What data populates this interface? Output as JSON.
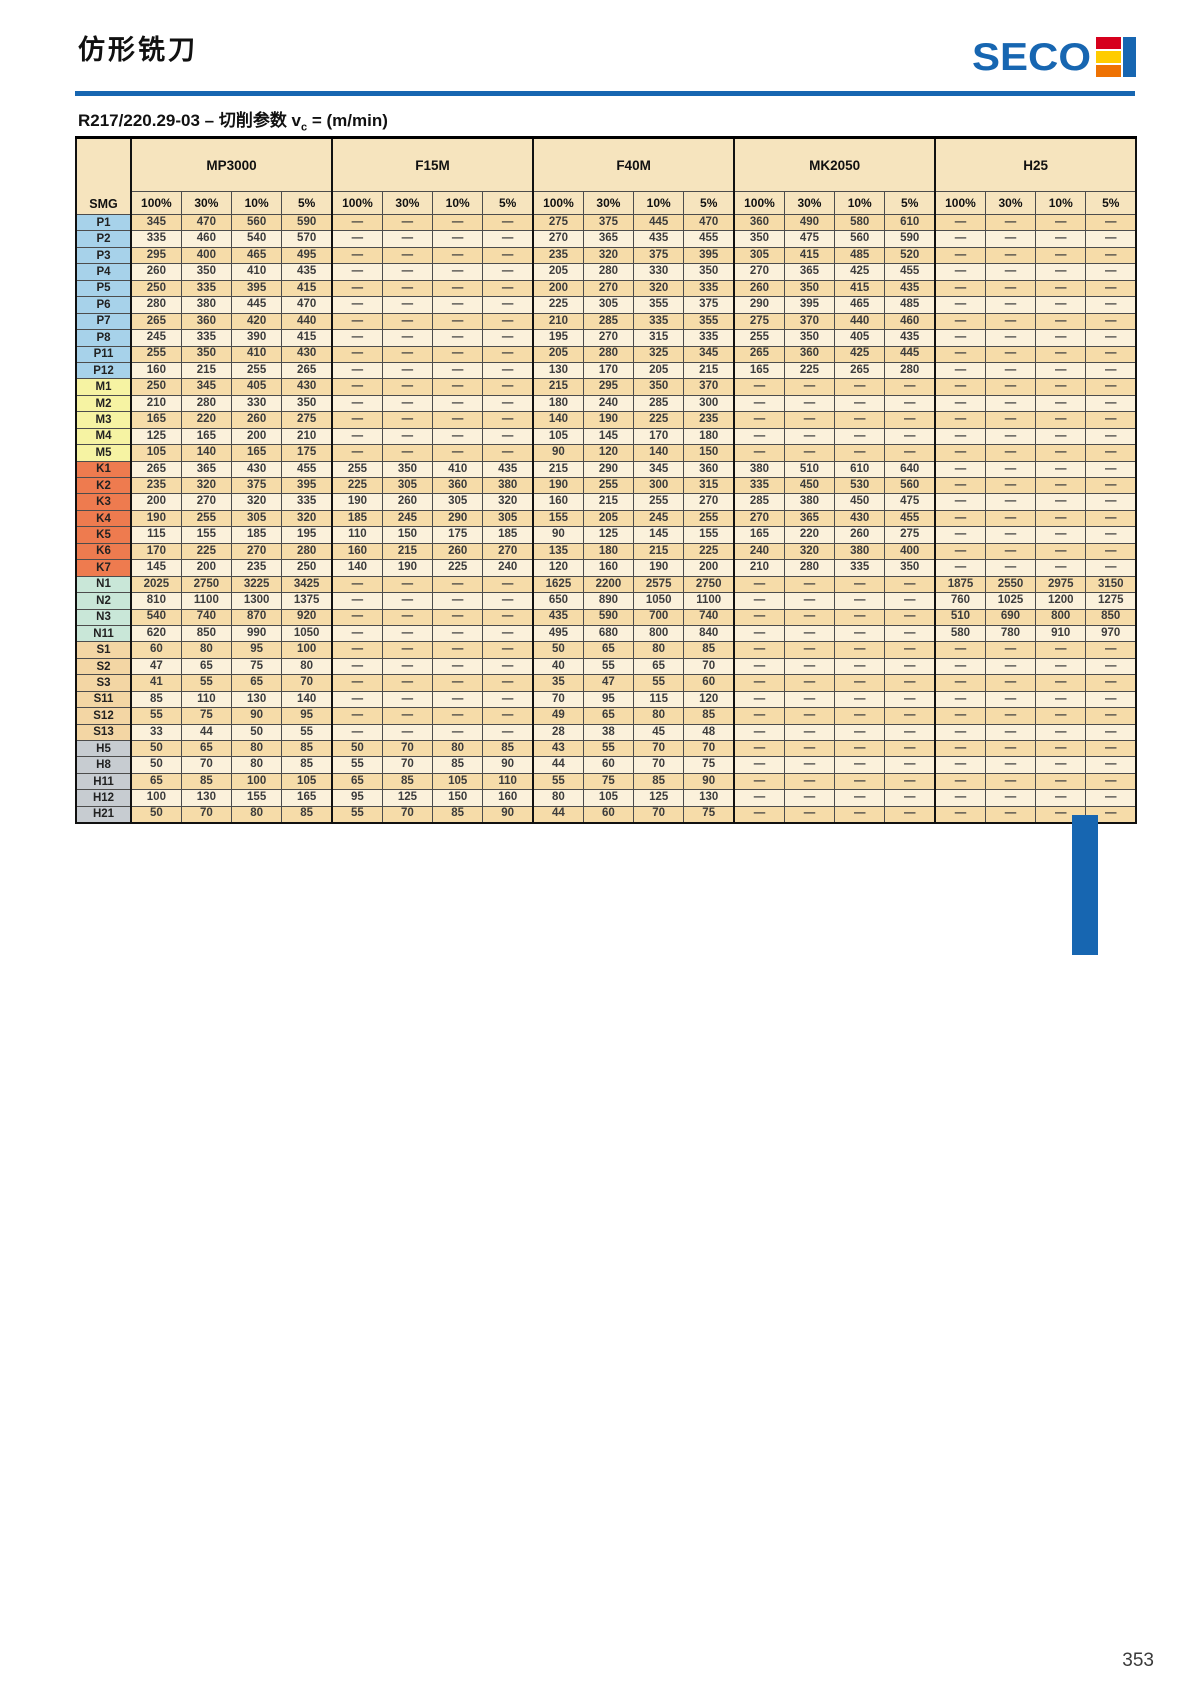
{
  "page": {
    "title": "仿形铣刀",
    "brand": "SECO",
    "subtitle_prefix": "R217/220.29-03 – 切削参数 v",
    "subtitle_sub": "c",
    "subtitle_suffix": " = (m/min)",
    "page_number": "353"
  },
  "colors": {
    "accent": "#1766B1",
    "header_bg": "#F6E4BE",
    "row_dark": "#F6DCA9",
    "row_light": "#FBF1DB",
    "logo_warm": [
      "#D6001C",
      "#FFCC00",
      "#EE7203"
    ],
    "row_groups": {
      "P": "#A7D2EA",
      "M": "#F6F3A3",
      "K": "#EE7B4F",
      "N": "#C9E7D8",
      "S": "#F3D6A4",
      "H": "#C7CCD1"
    }
  },
  "table": {
    "smg_label": "SMG",
    "groups": [
      "MP3000",
      "F15M",
      "F40M",
      "MK2050",
      "H25"
    ],
    "percent_headers": [
      "100%",
      "30%",
      "10%",
      "5%"
    ],
    "rows": [
      {
        "label": "P1",
        "group": "P",
        "values": [
          "345",
          "470",
          "560",
          "590",
          "—",
          "—",
          "—",
          "—",
          "275",
          "375",
          "445",
          "470",
          "360",
          "490",
          "580",
          "610",
          "—",
          "—",
          "—",
          "—"
        ]
      },
      {
        "label": "P2",
        "group": "P",
        "values": [
          "335",
          "460",
          "540",
          "570",
          "—",
          "—",
          "—",
          "—",
          "270",
          "365",
          "435",
          "455",
          "350",
          "475",
          "560",
          "590",
          "—",
          "—",
          "—",
          "—"
        ]
      },
      {
        "label": "P3",
        "group": "P",
        "values": [
          "295",
          "400",
          "465",
          "495",
          "—",
          "—",
          "—",
          "—",
          "235",
          "320",
          "375",
          "395",
          "305",
          "415",
          "485",
          "520",
          "—",
          "—",
          "—",
          "—"
        ]
      },
      {
        "label": "P4",
        "group": "P",
        "values": [
          "260",
          "350",
          "410",
          "435",
          "—",
          "—",
          "—",
          "—",
          "205",
          "280",
          "330",
          "350",
          "270",
          "365",
          "425",
          "455",
          "—",
          "—",
          "—",
          "—"
        ]
      },
      {
        "label": "P5",
        "group": "P",
        "values": [
          "250",
          "335",
          "395",
          "415",
          "—",
          "—",
          "—",
          "—",
          "200",
          "270",
          "320",
          "335",
          "260",
          "350",
          "415",
          "435",
          "—",
          "—",
          "—",
          "—"
        ]
      },
      {
        "label": "P6",
        "group": "P",
        "values": [
          "280",
          "380",
          "445",
          "470",
          "—",
          "—",
          "—",
          "—",
          "225",
          "305",
          "355",
          "375",
          "290",
          "395",
          "465",
          "485",
          "—",
          "—",
          "—",
          "—"
        ]
      },
      {
        "label": "P7",
        "group": "P",
        "values": [
          "265",
          "360",
          "420",
          "440",
          "—",
          "—",
          "—",
          "—",
          "210",
          "285",
          "335",
          "355",
          "275",
          "370",
          "440",
          "460",
          "—",
          "—",
          "—",
          "—"
        ]
      },
      {
        "label": "P8",
        "group": "P",
        "values": [
          "245",
          "335",
          "390",
          "415",
          "—",
          "—",
          "—",
          "—",
          "195",
          "270",
          "315",
          "335",
          "255",
          "350",
          "405",
          "435",
          "—",
          "—",
          "—",
          "—"
        ]
      },
      {
        "label": "P11",
        "group": "P",
        "values": [
          "255",
          "350",
          "410",
          "430",
          "—",
          "—",
          "—",
          "—",
          "205",
          "280",
          "325",
          "345",
          "265",
          "360",
          "425",
          "445",
          "—",
          "—",
          "—",
          "—"
        ]
      },
      {
        "label": "P12",
        "group": "P",
        "values": [
          "160",
          "215",
          "255",
          "265",
          "—",
          "—",
          "—",
          "—",
          "130",
          "170",
          "205",
          "215",
          "165",
          "225",
          "265",
          "280",
          "—",
          "—",
          "—",
          "—"
        ]
      },
      {
        "label": "M1",
        "group": "M",
        "values": [
          "250",
          "345",
          "405",
          "430",
          "—",
          "—",
          "—",
          "—",
          "215",
          "295",
          "350",
          "370",
          "—",
          "—",
          "—",
          "—",
          "—",
          "—",
          "—",
          "—"
        ]
      },
      {
        "label": "M2",
        "group": "M",
        "values": [
          "210",
          "280",
          "330",
          "350",
          "—",
          "—",
          "—",
          "—",
          "180",
          "240",
          "285",
          "300",
          "—",
          "—",
          "—",
          "—",
          "—",
          "—",
          "—",
          "—"
        ]
      },
      {
        "label": "M3",
        "group": "M",
        "values": [
          "165",
          "220",
          "260",
          "275",
          "—",
          "—",
          "—",
          "—",
          "140",
          "190",
          "225",
          "235",
          "—",
          "—",
          "—",
          "—",
          "—",
          "—",
          "—",
          "—"
        ]
      },
      {
        "label": "M4",
        "group": "M",
        "values": [
          "125",
          "165",
          "200",
          "210",
          "—",
          "—",
          "—",
          "—",
          "105",
          "145",
          "170",
          "180",
          "—",
          "—",
          "—",
          "—",
          "—",
          "—",
          "—",
          "—"
        ]
      },
      {
        "label": "M5",
        "group": "M",
        "values": [
          "105",
          "140",
          "165",
          "175",
          "—",
          "—",
          "—",
          "—",
          "90",
          "120",
          "140",
          "150",
          "—",
          "—",
          "—",
          "—",
          "—",
          "—",
          "—",
          "—"
        ]
      },
      {
        "label": "K1",
        "group": "K",
        "values": [
          "265",
          "365",
          "430",
          "455",
          "255",
          "350",
          "410",
          "435",
          "215",
          "290",
          "345",
          "360",
          "380",
          "510",
          "610",
          "640",
          "—",
          "—",
          "—",
          "—"
        ]
      },
      {
        "label": "K2",
        "group": "K",
        "values": [
          "235",
          "320",
          "375",
          "395",
          "225",
          "305",
          "360",
          "380",
          "190",
          "255",
          "300",
          "315",
          "335",
          "450",
          "530",
          "560",
          "—",
          "—",
          "—",
          "—"
        ]
      },
      {
        "label": "K3",
        "group": "K",
        "values": [
          "200",
          "270",
          "320",
          "335",
          "190",
          "260",
          "305",
          "320",
          "160",
          "215",
          "255",
          "270",
          "285",
          "380",
          "450",
          "475",
          "—",
          "—",
          "—",
          "—"
        ]
      },
      {
        "label": "K4",
        "group": "K",
        "values": [
          "190",
          "255",
          "305",
          "320",
          "185",
          "245",
          "290",
          "305",
          "155",
          "205",
          "245",
          "255",
          "270",
          "365",
          "430",
          "455",
          "—",
          "—",
          "—",
          "—"
        ]
      },
      {
        "label": "K5",
        "group": "K",
        "values": [
          "115",
          "155",
          "185",
          "195",
          "110",
          "150",
          "175",
          "185",
          "90",
          "125",
          "145",
          "155",
          "165",
          "220",
          "260",
          "275",
          "—",
          "—",
          "—",
          "—"
        ]
      },
      {
        "label": "K6",
        "group": "K",
        "values": [
          "170",
          "225",
          "270",
          "280",
          "160",
          "215",
          "260",
          "270",
          "135",
          "180",
          "215",
          "225",
          "240",
          "320",
          "380",
          "400",
          "—",
          "—",
          "—",
          "—"
        ]
      },
      {
        "label": "K7",
        "group": "K",
        "values": [
          "145",
          "200",
          "235",
          "250",
          "140",
          "190",
          "225",
          "240",
          "120",
          "160",
          "190",
          "200",
          "210",
          "280",
          "335",
          "350",
          "—",
          "—",
          "—",
          "—"
        ]
      },
      {
        "label": "N1",
        "group": "N",
        "values": [
          "2025",
          "2750",
          "3225",
          "3425",
          "—",
          "—",
          "—",
          "—",
          "1625",
          "2200",
          "2575",
          "2750",
          "—",
          "—",
          "—",
          "—",
          "1875",
          "2550",
          "2975",
          "3150"
        ]
      },
      {
        "label": "N2",
        "group": "N",
        "values": [
          "810",
          "1100",
          "1300",
          "1375",
          "—",
          "—",
          "—",
          "—",
          "650",
          "890",
          "1050",
          "1100",
          "—",
          "—",
          "—",
          "—",
          "760",
          "1025",
          "1200",
          "1275"
        ]
      },
      {
        "label": "N3",
        "group": "N",
        "values": [
          "540",
          "740",
          "870",
          "920",
          "—",
          "—",
          "—",
          "—",
          "435",
          "590",
          "700",
          "740",
          "—",
          "—",
          "—",
          "—",
          "510",
          "690",
          "800",
          "850"
        ]
      },
      {
        "label": "N11",
        "group": "N",
        "values": [
          "620",
          "850",
          "990",
          "1050",
          "—",
          "—",
          "—",
          "—",
          "495",
          "680",
          "800",
          "840",
          "—",
          "—",
          "—",
          "—",
          "580",
          "780",
          "910",
          "970"
        ]
      },
      {
        "label": "S1",
        "group": "S",
        "values": [
          "60",
          "80",
          "95",
          "100",
          "—",
          "—",
          "—",
          "—",
          "50",
          "65",
          "80",
          "85",
          "—",
          "—",
          "—",
          "—",
          "—",
          "—",
          "—",
          "—"
        ]
      },
      {
        "label": "S2",
        "group": "S",
        "values": [
          "47",
          "65",
          "75",
          "80",
          "—",
          "—",
          "—",
          "—",
          "40",
          "55",
          "65",
          "70",
          "—",
          "—",
          "—",
          "—",
          "—",
          "—",
          "—",
          "—"
        ]
      },
      {
        "label": "S3",
        "group": "S",
        "values": [
          "41",
          "55",
          "65",
          "70",
          "—",
          "—",
          "—",
          "—",
          "35",
          "47",
          "55",
          "60",
          "—",
          "—",
          "—",
          "—",
          "—",
          "—",
          "—",
          "—"
        ]
      },
      {
        "label": "S11",
        "group": "S",
        "values": [
          "85",
          "110",
          "130",
          "140",
          "—",
          "—",
          "—",
          "—",
          "70",
          "95",
          "115",
          "120",
          "—",
          "—",
          "—",
          "—",
          "—",
          "—",
          "—",
          "—"
        ]
      },
      {
        "label": "S12",
        "group": "S",
        "values": [
          "55",
          "75",
          "90",
          "95",
          "—",
          "—",
          "—",
          "—",
          "49",
          "65",
          "80",
          "85",
          "—",
          "—",
          "—",
          "—",
          "—",
          "—",
          "—",
          "—"
        ]
      },
      {
        "label": "S13",
        "group": "S",
        "values": [
          "33",
          "44",
          "50",
          "55",
          "—",
          "—",
          "—",
          "—",
          "28",
          "38",
          "45",
          "48",
          "—",
          "—",
          "—",
          "—",
          "—",
          "—",
          "—",
          "—"
        ]
      },
      {
        "label": "H5",
        "group": "H",
        "values": [
          "50",
          "65",
          "80",
          "85",
          "50",
          "70",
          "80",
          "85",
          "43",
          "55",
          "70",
          "70",
          "—",
          "—",
          "—",
          "—",
          "—",
          "—",
          "—",
          "—"
        ]
      },
      {
        "label": "H8",
        "group": "H",
        "values": [
          "50",
          "70",
          "80",
          "85",
          "55",
          "70",
          "85",
          "90",
          "44",
          "60",
          "70",
          "75",
          "—",
          "—",
          "—",
          "—",
          "—",
          "—",
          "—",
          "—"
        ]
      },
      {
        "label": "H11",
        "group": "H",
        "values": [
          "65",
          "85",
          "100",
          "105",
          "65",
          "85",
          "105",
          "110",
          "55",
          "75",
          "85",
          "90",
          "—",
          "—",
          "—",
          "—",
          "—",
          "—",
          "—",
          "—"
        ]
      },
      {
        "label": "H12",
        "group": "H",
        "values": [
          "100",
          "130",
          "155",
          "165",
          "95",
          "125",
          "150",
          "160",
          "80",
          "105",
          "125",
          "130",
          "—",
          "—",
          "—",
          "—",
          "—",
          "—",
          "—",
          "—"
        ]
      },
      {
        "label": "H21",
        "group": "H",
        "values": [
          "50",
          "70",
          "80",
          "85",
          "55",
          "70",
          "85",
          "90",
          "44",
          "60",
          "70",
          "75",
          "—",
          "—",
          "—",
          "—",
          "—",
          "—",
          "—",
          "—"
        ]
      }
    ]
  }
}
